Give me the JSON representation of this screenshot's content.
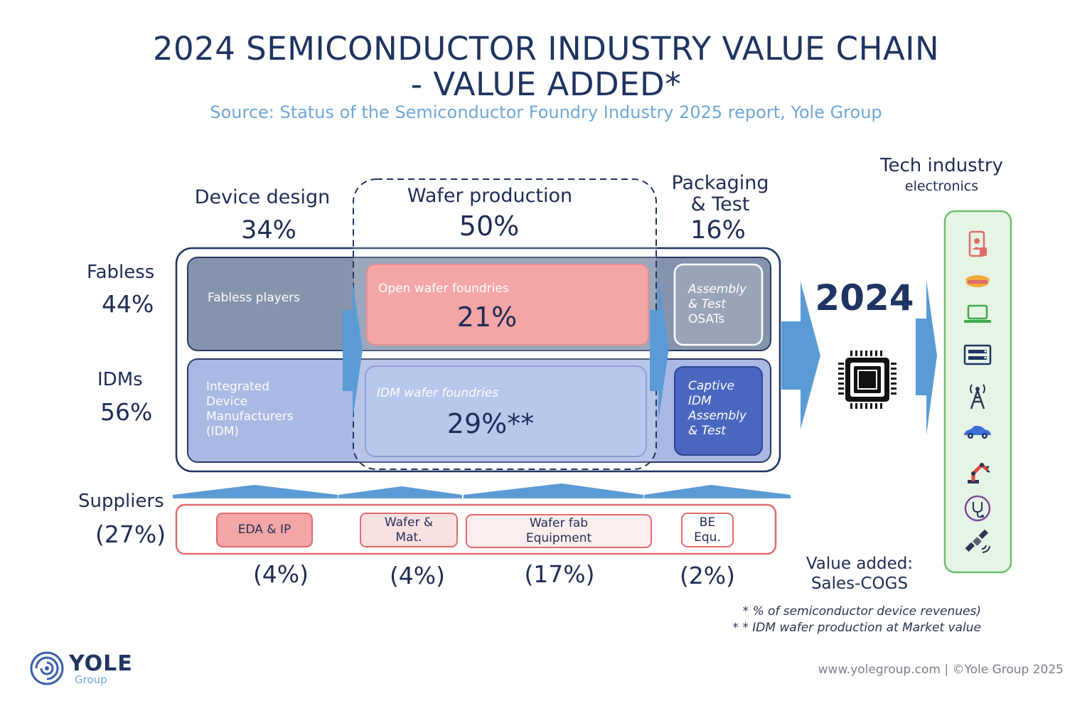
{
  "title": {
    "line1": "2024 SEMICONDUCTOR INDUSTRY VALUE CHAIN",
    "line2": "- VALUE ADDED*"
  },
  "subtitle": "Source: Status of the Semiconductor Foundry Industry 2025 report, Yole Group",
  "columns": {
    "design": {
      "label": "Device design",
      "pct": "34%"
    },
    "wafer": {
      "label": "Wafer production",
      "pct": "50%"
    },
    "packaging": {
      "label_line1": "Packaging",
      "label_line2": "& Test",
      "pct": "16%"
    },
    "tech": {
      "label": "Tech industry",
      "sublabel": "electronics"
    }
  },
  "rows": {
    "fabless": {
      "label": "Fabless",
      "pct": "44%"
    },
    "idms": {
      "label": "IDMs",
      "pct": "56%"
    },
    "suppliers": {
      "label": "Suppliers",
      "pct": "(27%)"
    }
  },
  "boxes": {
    "fabless_players": "Fabless players",
    "open_foundries": {
      "label": "Open wafer foundries",
      "pct": "21%"
    },
    "assembly_osat": {
      "line1": "Assembly",
      "line2": "& Test",
      "line3": "OSATs"
    },
    "idm": {
      "line1": "Integrated",
      "line2": "Device",
      "line3": "Manufacturers",
      "line4": "(IDM)"
    },
    "idm_foundries": {
      "label": "IDM wafer foundries",
      "pct": "29%**"
    },
    "captive": {
      "line1": "Captive",
      "line2": "IDM",
      "line3": "Assembly",
      "line4": "& Test"
    }
  },
  "year": "2024",
  "suppliers": [
    {
      "line1": "EDA & IP",
      "line2": "",
      "pct": "(4%)"
    },
    {
      "line1": "Wafer &",
      "line2": "Mat.",
      "pct": "(4%)"
    },
    {
      "line1": "Wafer fab",
      "line2": "Equipment",
      "pct": "(17%)"
    },
    {
      "line1": "BE",
      "line2": "Equ.",
      "pct": "(2%)"
    }
  ],
  "value_added": {
    "line1": "Value added:",
    "line2": "Sales-COGS"
  },
  "footnotes": {
    "note1": "* % of semiconductor device revenues)",
    "note2": "* * IDM wafer production at Market value"
  },
  "logo": {
    "name": "YOLE",
    "sub": "Group"
  },
  "copyright": "www.yolegroup.com | ©Yole Group 2025",
  "icons": [
    "smartphone-icon",
    "vr-headset-icon",
    "laptop-icon",
    "server-icon",
    "cell-tower-icon",
    "car-icon",
    "robot-arm-icon",
    "stethoscope-icon",
    "satellite-icon"
  ],
  "colors": {
    "navy": "#1f3461",
    "fabless_box": "#8594ad",
    "idm_box": "#a9b9e3",
    "foundry_pink": "#f4a6a6",
    "idm_foundry": "#b8c7ec",
    "captive_blue": "#4a67c0",
    "arrow_blue": "#5b9bd5",
    "supplier_red": "#e06b6b",
    "icon_panel_green": "#6cbf6c"
  }
}
